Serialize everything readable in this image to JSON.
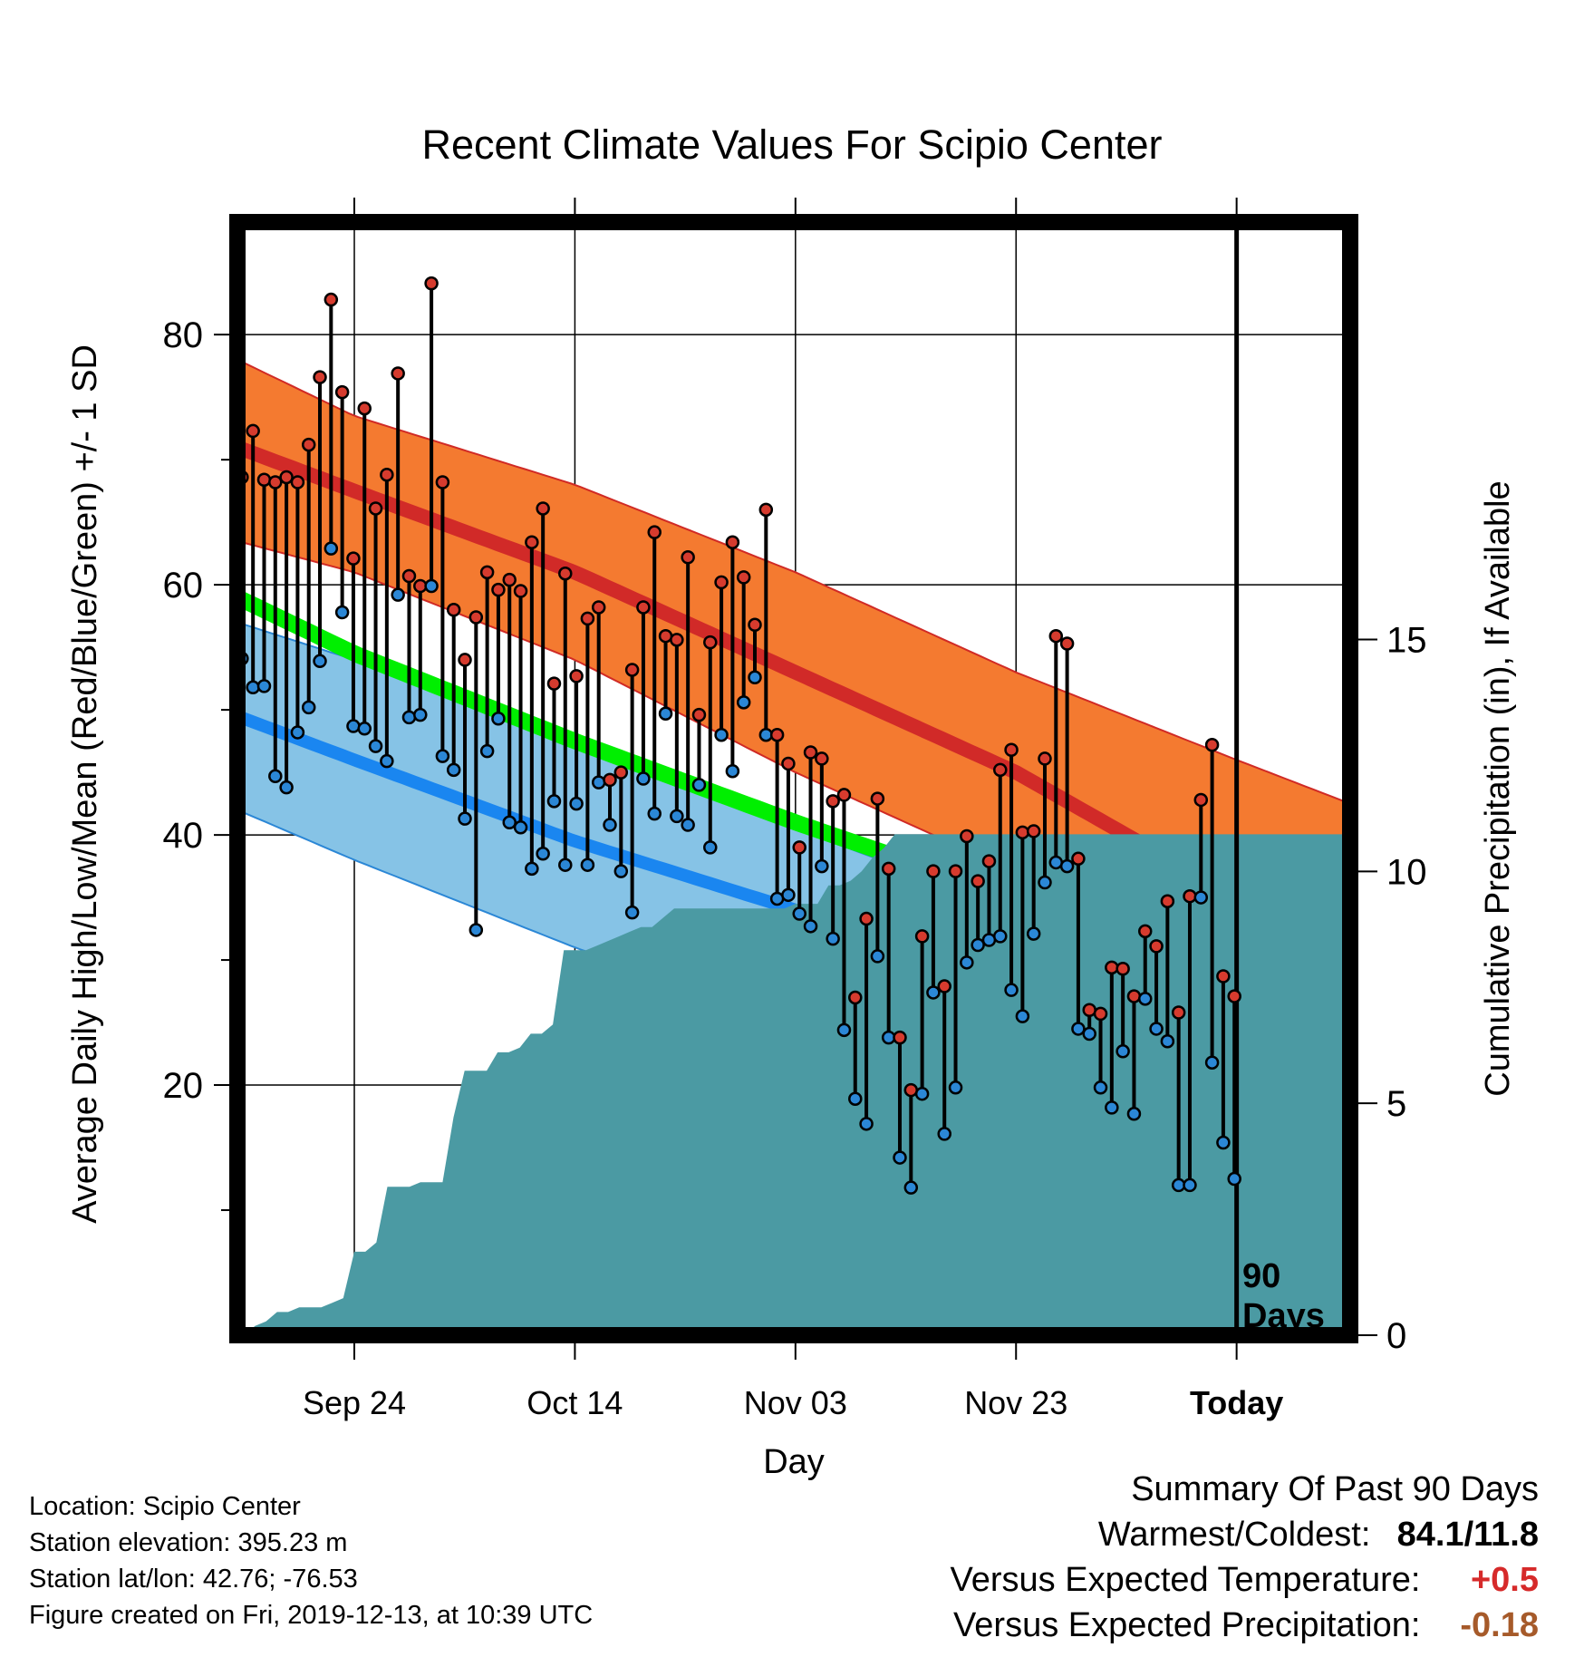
{
  "chart_data": {
    "type": "line",
    "title": "Recent Climate Values For Scipio Center",
    "xlabel": "Day",
    "ylabel": "Average Daily High/Low/Mean (Red/Blue/Green) +/- 1 SD",
    "y2label": "Cumulative Precipitation (in), If Available",
    "ylim": [
      0,
      89
    ],
    "y2lim": [
      0,
      24
    ],
    "xlim": [
      -10.6,
      90.3
    ],
    "x_ticks": [
      {
        "day": 0,
        "label": "Sep 24"
      },
      {
        "day": 20,
        "label": "Oct 14"
      },
      {
        "day": 40,
        "label": "Nov 03"
      },
      {
        "day": 60,
        "label": "Nov 23"
      },
      {
        "day": 80,
        "label": "Today"
      }
    ],
    "y_ticks": [
      20,
      40,
      60,
      80
    ],
    "y2_ticks": [
      0,
      5,
      10,
      15
    ],
    "today_marker": "90 Days",
    "grid": true,
    "normal_high": {
      "days": [
        -10.6,
        0,
        20,
        40,
        60,
        80,
        90.3
      ],
      "mean": [
        71,
        67.5,
        61,
        53,
        45,
        35,
        32
      ],
      "upper": [
        78,
        73.5,
        68,
        61,
        53,
        46,
        42.5
      ],
      "lower": [
        63.5,
        61,
        54,
        45,
        37,
        28,
        25
      ]
    },
    "normal_mean": {
      "days": [
        -10.6,
        0,
        20,
        40,
        60,
        80,
        90.3
      ],
      "value": [
        59,
        54.5,
        47.5,
        41,
        35,
        27,
        23
      ]
    },
    "normal_low": {
      "days": [
        -10.6,
        0,
        20,
        40,
        60,
        80,
        90.3
      ],
      "mean": [
        49.5,
        46,
        39.5,
        34,
        28,
        19.5,
        16.5
      ],
      "upper": [
        57,
        54,
        47.5,
        40.5,
        34,
        28.5,
        26.5
      ],
      "lower": [
        42,
        38,
        31,
        25,
        18,
        10.5,
        7.5
      ]
    },
    "series": [
      {
        "name": "High",
        "color": "#d63b2e",
        "values": [
          68.6,
          72.3,
          68.4,
          68.2,
          68.6,
          68.2,
          71.2,
          76.6,
          82.8,
          75.4,
          62.1,
          74.1,
          66.1,
          68.8,
          76.9,
          60.7,
          59.9,
          84.1,
          68.2,
          58.0,
          54.0,
          57.4,
          61.0,
          59.6,
          60.4,
          59.5,
          63.4,
          66.1,
          52.1,
          60.9,
          52.7,
          57.3,
          58.2,
          44.4,
          45.0,
          53.2,
          58.2,
          64.2,
          55.9,
          55.6,
          62.2,
          49.6,
          55.4,
          60.2,
          63.4,
          60.6,
          56.8,
          66.0,
          48.0,
          45.7,
          39.0,
          46.6,
          46.1,
          42.7,
          43.2,
          27.0,
          33.3,
          42.9,
          37.3,
          23.8,
          19.6,
          31.9,
          37.1,
          27.9,
          37.1,
          39.9,
          36.3,
          37.9,
          45.2,
          46.8,
          40.2,
          40.3,
          46.1,
          55.9,
          55.3,
          38.1,
          26.0,
          25.7,
          29.4,
          29.3,
          27.1,
          32.3,
          31.1,
          34.7,
          25.8,
          35.1,
          42.8,
          47.2,
          28.7,
          27.1
        ]
      },
      {
        "name": "Low",
        "color": "#2b87d6",
        "values": [
          54.1,
          51.8,
          51.9,
          44.7,
          43.8,
          48.2,
          50.2,
          53.9,
          62.9,
          57.8,
          48.7,
          48.5,
          47.1,
          45.9,
          59.2,
          49.4,
          49.6,
          59.9,
          46.3,
          45.2,
          41.3,
          32.4,
          46.7,
          49.3,
          41.0,
          40.6,
          37.3,
          38.5,
          42.7,
          37.6,
          42.5,
          37.6,
          44.2,
          40.8,
          37.1,
          33.8,
          44.5,
          41.7,
          49.7,
          41.5,
          40.8,
          44.0,
          39.0,
          48.0,
          45.1,
          50.6,
          52.6,
          48.0,
          34.9,
          35.2,
          33.7,
          32.7,
          37.5,
          31.7,
          24.4,
          18.9,
          16.9,
          30.3,
          23.8,
          14.2,
          11.8,
          19.3,
          27.4,
          16.1,
          19.8,
          29.8,
          31.2,
          31.6,
          31.9,
          27.6,
          25.5,
          32.1,
          36.2,
          37.8,
          37.5,
          24.5,
          24.1,
          19.8,
          18.2,
          22.7,
          17.7,
          26.9,
          24.5,
          23.5,
          12.0,
          12.0,
          35.0,
          21.8,
          15.4,
          12.5
        ]
      },
      {
        "name": "Cumulative Precipitation",
        "color": "#4b9aa3",
        "values": [
          0,
          0.2,
          0.3,
          0.5,
          0.5,
          0.6,
          0.6,
          0.6,
          0.7,
          0.8,
          1.8,
          1.8,
          2.0,
          3.2,
          3.2,
          3.2,
          3.3,
          3.3,
          3.3,
          4.7,
          5.7,
          5.7,
          5.7,
          6.1,
          6.1,
          6.2,
          6.5,
          6.5,
          6.7,
          8.3,
          8.3,
          8.3,
          8.4,
          8.5,
          8.6,
          8.7,
          8.8,
          8.8,
          9.0,
          9.2,
          9.2,
          9.2,
          9.2,
          9.2,
          9.2,
          9.2,
          9.2,
          9.2,
          9.2,
          9.2,
          9.3,
          9.3,
          9.3,
          9.7,
          9.7,
          9.8,
          10.0,
          10.3,
          10.5,
          10.8,
          10.8,
          10.8,
          10.8,
          10.8,
          10.8,
          10.8,
          10.8,
          10.8,
          10.8,
          10.8,
          10.8,
          10.8,
          10.8,
          10.8,
          10.8,
          10.8,
          10.8,
          10.8,
          10.8,
          10.8
        ]
      }
    ],
    "summary": {
      "title": "Summary Of Past 90 Days",
      "warm_cold_label": "Warmest/Coldest:",
      "warm_cold_value": "84.1/11.8",
      "temp_label": "Versus Expected Temperature:",
      "temp_value": "+0.5",
      "temp_color": "#d62a2a",
      "precip_label": "Versus Expected Precipitation:",
      "precip_value": "-0.18",
      "precip_color": "#a65a2a"
    }
  },
  "info": {
    "location": "Location: Scipio Center",
    "elevation": "Station elevation: 395.23 m",
    "latlon": "Station lat/lon: 42.76; -76.53",
    "created": "Figure created on Fri, 2019-12-13, at 10:39 UTC"
  }
}
